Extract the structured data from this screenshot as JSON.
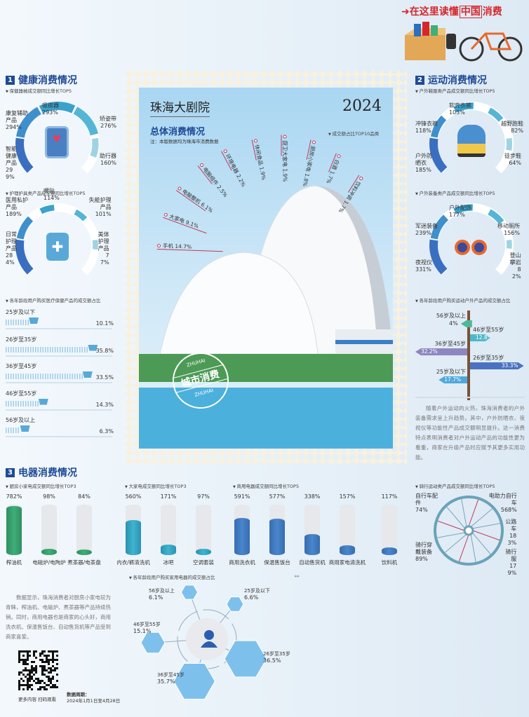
{
  "banner": {
    "title_a": "在这里读懂",
    "title_b": "中国",
    "title_c": "消费"
  },
  "sections": {
    "health": {
      "num": "1",
      "title": "健康消费情况"
    },
    "sports": {
      "num": "2",
      "title": "运动消费情况"
    },
    "appliance": {
      "num": "3",
      "title": "电器消费情况"
    }
  },
  "center": {
    "place": "珠海大剧院",
    "year": "2024",
    "title": "总体消费情况",
    "note": "注：本版数据均为珠海市消费数据",
    "stamp_top": "ZHUHAI",
    "stamp_mid": "城市消费",
    "stamp_bottom": "ZHUHAI"
  },
  "paragraphs": {
    "sports": "随着户外运动的火热，珠海消费者的户外装备需求呈上升趋势。其中，户外防晒衣、夜视仪等功能性产品成交额明显提升。这一消费特点表明消费者对户外运动产品的功能性更为看重，商家在升级产品时应赋予其更多实用功能。",
    "appliance": "数据显示，珠海消费者对厨房小家电较为青睐，榨油机、电磁炉、煮茶器等产品持续热销。同时，商用电器也是商家的心头好，商用洗衣机、保温售饭台、自动售货机等产品受到商家喜爱。"
  },
  "footer": {
    "qr_caption": "更多内容 扫码观看",
    "period_label": "数据周期：",
    "period": "2024年1月1日至4月28日"
  },
  "colors": {
    "heading": "#1f4a96",
    "accent_red": "#d6262b",
    "gauge_dark": "#3a78c2",
    "gauge_light": "#a9d8e8",
    "green_bar": "#3fae78",
    "cyan_bar": "#3fb3cf",
    "blue_bar": "#4a86cc",
    "wheel": "#6aa3b8"
  },
  "chart_data": [
    {
      "type": "bar",
      "title": "成交额占比TOP10品类",
      "unit": "%",
      "categories": [
        "手机",
        "大家电",
        "电脑整机",
        "电脑组件",
        "环境电器",
        "休闲食品",
        "厨卫大家电",
        "厨房小家电",
        "白酒",
        "饮料冲调"
      ],
      "values": [
        14.7,
        9.1,
        6.1,
        2.5,
        2.2,
        1.9,
        1.9,
        1.8,
        1.7,
        1.7
      ]
    },
    {
      "type": "gauge",
      "title": "保健器械成交额同比增长TOP5",
      "unit": "%",
      "categories": [
        "智能健康产品",
        "康复辅助产品",
        "吸痰器",
        "矫姿带",
        "助行器"
      ],
      "values": [
        299,
        294,
        293,
        276,
        160
      ]
    },
    {
      "type": "gauge",
      "title": "护理护具类产品成交额同比增长TOP5",
      "unit": "%",
      "categories": [
        "日常护理产品",
        "医用私护产品",
        "暖贴",
        "失能护理产品",
        "美体护理产品"
      ],
      "values": [
        284,
        189,
        114,
        101,
        77
      ]
    },
    {
      "type": "bar",
      "title": "各年龄段用户购买医疗保健产品的成交额占比",
      "unit": "%",
      "categories": [
        "25岁及以下",
        "26岁至35岁",
        "36岁至45岁",
        "46岁至55岁",
        "56岁及以上"
      ],
      "values": [
        10.1,
        35.8,
        33.5,
        14.3,
        6.3
      ]
    },
    {
      "type": "gauge",
      "title": "户外鞋服类产品成交额同比增长TOP5",
      "unit": "%",
      "categories": [
        "户外防晒衣",
        "冲锋衣裤",
        "软壳衣裤",
        "越野跑鞋",
        "徒步鞋"
      ],
      "values": [
        185,
        118,
        103,
        82,
        64
      ]
    },
    {
      "type": "gauge",
      "title": "户外装备类产品成交额同比增长TOP5",
      "unit": "%",
      "categories": [
        "夜视仪",
        "军迷装备",
        "户外配饰",
        "移动厕所",
        "登山攀岩"
      ],
      "values": [
        331,
        239,
        177,
        156,
        82
      ]
    },
    {
      "type": "bar",
      "title": "各年龄段用户购买运动户外产品的成交额占比",
      "unit": "%",
      "categories": [
        "56岁及以上",
        "46岁至55岁",
        "36岁至45岁",
        "26岁至35岁",
        "25岁及以下"
      ],
      "values": [
        4,
        12.8,
        32.2,
        33.3,
        17.7
      ]
    },
    {
      "type": "bar",
      "title": "厨房小家电成交额同比增长TOP3",
      "unit": "%",
      "categories": [
        "榨油机",
        "电磁炉/电陶炉",
        "煮茶器/电茶盘"
      ],
      "values": [
        782,
        98,
        84
      ]
    },
    {
      "type": "bar",
      "title": "大家电成交额同比增长TOP3",
      "unit": "%",
      "categories": [
        "内衣/裤清洗机",
        "冰吧",
        "空调套装"
      ],
      "values": [
        560,
        171,
        97
      ]
    },
    {
      "type": "bar",
      "title": "商用电器成交额同比增长TOP5",
      "unit": "%",
      "categories": [
        "商用洗衣机",
        "保温售饭台",
        "自动售货机",
        "商用家电清洗机",
        "饮料机"
      ],
      "values": [
        591,
        577,
        338,
        157,
        117
      ]
    },
    {
      "type": "pie",
      "title": "骑行运动类产品成交额同比增长TOP5",
      "unit": "%",
      "categories": [
        "自行车配件",
        "电助力自行车",
        "公路车",
        "骑行服",
        "骑行穿戴装备"
      ],
      "values": [
        74,
        568,
        183,
        179,
        89
      ]
    },
    {
      "type": "scatter",
      "title": "各年龄段用户购买家用电器的成交额占比",
      "unit": "%",
      "categories": [
        "56岁及以上",
        "25岁及以下",
        "46岁至55岁",
        "26岁至35岁",
        "36岁至45岁"
      ],
      "values": [
        6.1,
        6.6,
        15.1,
        36.5,
        35.7
      ]
    }
  ]
}
